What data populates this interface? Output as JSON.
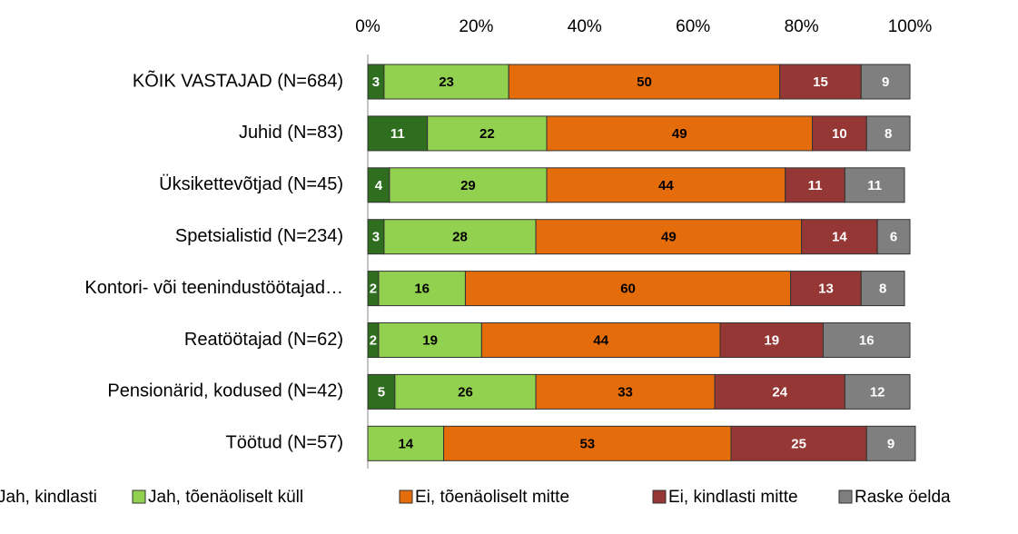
{
  "chart_data": {
    "type": "stacked_bar_horizontal",
    "categories": [
      "KÕIK VASTAJAD (N=684)",
      "Juhid (N=83)",
      "Üksikettevõtjad (N=45)",
      "Spetsialistid (N=234)",
      "Kontori- või teenindustöötajad…",
      "Reatöötajad (N=62)",
      "Pensionärid, kodused (N=42)",
      "Töötud (N=57)"
    ],
    "series": [
      {
        "name": "Jah, kindlasti",
        "color": "#2e6e1e",
        "values": [
          3,
          11,
          4,
          3,
          2,
          2,
          5,
          null
        ]
      },
      {
        "name": "Jah, tõenäoliselt küll",
        "color": "#92d050",
        "values": [
          23,
          22,
          29,
          28,
          16,
          19,
          26,
          14
        ]
      },
      {
        "name": "Ei, tõenäoliselt mitte",
        "color": "#e46c0a",
        "values": [
          50,
          49,
          44,
          49,
          60,
          44,
          33,
          53
        ]
      },
      {
        "name": "Ei, kindlasti mitte",
        "color": "#953735",
        "values": [
          15,
          10,
          11,
          14,
          13,
          19,
          24,
          25
        ]
      },
      {
        "name": "Raske öelda",
        "color": "#7f7f7f",
        "values": [
          9,
          8,
          11,
          6,
          8,
          16,
          12,
          9
        ]
      }
    ],
    "xlim": [
      0,
      100
    ],
    "xticks": [
      {
        "value": 0,
        "label": "0%"
      },
      {
        "value": 20,
        "label": "20%"
      },
      {
        "value": 40,
        "label": "40%"
      },
      {
        "value": 60,
        "label": "60%"
      },
      {
        "value": 80,
        "label": "80%"
      },
      {
        "value": 100,
        "label": "100%"
      }
    ],
    "legend": "bottom"
  }
}
